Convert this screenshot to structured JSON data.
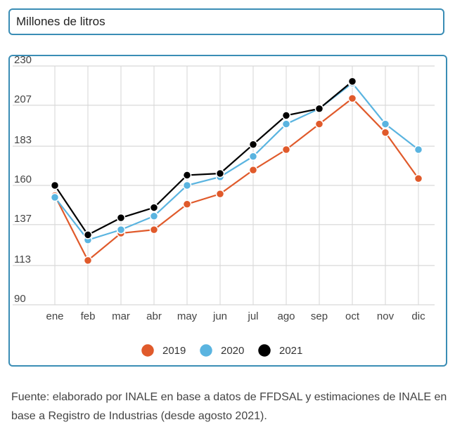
{
  "header": {
    "unit_label": "Millones de litros"
  },
  "chart_data": {
    "type": "line",
    "title": "",
    "xlabel": "",
    "ylabel": "Millones de litros",
    "categories": [
      "ene",
      "feb",
      "mar",
      "abr",
      "may",
      "jun",
      "jul",
      "ago",
      "sep",
      "oct",
      "nov",
      "dic"
    ],
    "y_ticks": [
      90,
      113,
      137,
      160,
      183,
      207,
      230
    ],
    "ylim": [
      90,
      230
    ],
    "grid": true,
    "legend": "bottom-center",
    "series": [
      {
        "name": "2019",
        "color": "#e05a2b",
        "values": [
          154,
          116,
          132,
          134,
          149,
          155,
          169,
          181,
          196,
          211,
          191,
          164
        ]
      },
      {
        "name": "2020",
        "color": "#5ab4e0",
        "values": [
          153,
          128,
          134,
          142,
          160,
          165,
          177,
          196,
          205,
          220,
          196,
          181
        ]
      },
      {
        "name": "2021",
        "color": "#000000",
        "values": [
          160,
          131,
          141,
          147,
          166,
          167,
          184,
          201,
          205,
          221,
          null,
          null
        ]
      }
    ]
  },
  "source": {
    "text": "Fuente: elaborado por INALE en base a datos de FFDSAL y estimaciones de INALE en base a Registro de Industrias (desde agosto 2021)."
  }
}
